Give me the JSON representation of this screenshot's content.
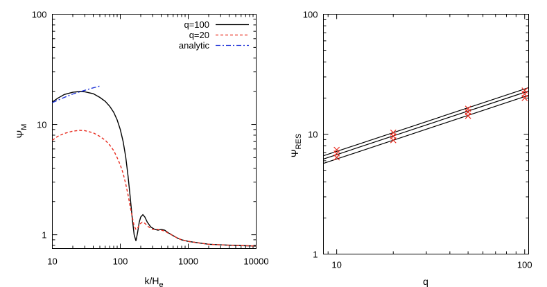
{
  "chart_data": [
    {
      "type": "line",
      "xlabel": "k/H",
      "xlabel_sub": "e",
      "ylabel": "Ψ",
      "ylabel_sub": "M",
      "xscale": "log",
      "yscale": "log",
      "xlim": [
        10,
        10000
      ],
      "ylim": [
        0.75,
        100
      ],
      "x_ticks": [
        10,
        100,
        1000,
        10000
      ],
      "x_tick_labels": [
        "10",
        "100",
        "1000",
        "10000"
      ],
      "y_ticks": [
        1,
        10,
        100
      ],
      "y_tick_labels": [
        "1",
        "10",
        "100"
      ],
      "legend_position": "top-right",
      "grid": false,
      "series": [
        {
          "name": "q=100",
          "color": "#000000",
          "dash": "solid",
          "points": [
            [
              10,
              16.0
            ],
            [
              12,
              17.3
            ],
            [
              15,
              18.7
            ],
            [
              20,
              19.6
            ],
            [
              25,
              19.9
            ],
            [
              30,
              19.8
            ],
            [
              40,
              19.0
            ],
            [
              50,
              17.6
            ],
            [
              60,
              16.2
            ],
            [
              70,
              14.6
            ],
            [
              80,
              12.9
            ],
            [
              90,
              11.0
            ],
            [
              100,
              9.0
            ],
            [
              110,
              7.0
            ],
            [
              120,
              5.1
            ],
            [
              130,
              3.4
            ],
            [
              140,
              2.2
            ],
            [
              150,
              1.4
            ],
            [
              160,
              1.0
            ],
            [
              170,
              0.88
            ],
            [
              180,
              1.05
            ],
            [
              190,
              1.3
            ],
            [
              200,
              1.45
            ],
            [
              215,
              1.52
            ],
            [
              230,
              1.45
            ],
            [
              250,
              1.3
            ],
            [
              280,
              1.18
            ],
            [
              320,
              1.12
            ],
            [
              360,
              1.1
            ],
            [
              400,
              1.12
            ],
            [
              450,
              1.1
            ],
            [
              500,
              1.05
            ],
            [
              600,
              0.98
            ],
            [
              700,
              0.93
            ],
            [
              800,
              0.9
            ],
            [
              1000,
              0.87
            ],
            [
              1500,
              0.84
            ],
            [
              2000,
              0.82
            ],
            [
              3000,
              0.81
            ],
            [
              5000,
              0.8
            ],
            [
              10000,
              0.79
            ]
          ]
        },
        {
          "name": "q=20",
          "color": "#e8291c",
          "dash": "4,3",
          "points": [
            [
              10,
              7.2
            ],
            [
              12,
              7.8
            ],
            [
              15,
              8.3
            ],
            [
              20,
              8.7
            ],
            [
              25,
              8.85
            ],
            [
              30,
              8.8
            ],
            [
              40,
              8.4
            ],
            [
              50,
              7.8
            ],
            [
              60,
              7.2
            ],
            [
              70,
              6.5
            ],
            [
              80,
              5.8
            ],
            [
              90,
              5.0
            ],
            [
              100,
              4.3
            ],
            [
              110,
              3.6
            ],
            [
              120,
              2.9
            ],
            [
              130,
              2.3
            ],
            [
              140,
              1.8
            ],
            [
              150,
              1.45
            ],
            [
              160,
              1.2
            ],
            [
              170,
              1.12
            ],
            [
              180,
              1.15
            ],
            [
              195,
              1.25
            ],
            [
              210,
              1.3
            ],
            [
              230,
              1.27
            ],
            [
              260,
              1.18
            ],
            [
              300,
              1.12
            ],
            [
              350,
              1.12
            ],
            [
              400,
              1.1
            ],
            [
              450,
              1.08
            ],
            [
              500,
              1.04
            ],
            [
              600,
              0.98
            ],
            [
              700,
              0.93
            ],
            [
              800,
              0.9
            ],
            [
              1000,
              0.87
            ],
            [
              1500,
              0.84
            ],
            [
              2000,
              0.82
            ],
            [
              3000,
              0.81
            ],
            [
              5000,
              0.8
            ],
            [
              10000,
              0.79
            ]
          ]
        },
        {
          "name": "analytic",
          "color": "#1a2fd6",
          "dash": "7,3,2,3",
          "points": [
            [
              10,
              15.8
            ],
            [
              15,
              17.6
            ],
            [
              20,
              18.9
            ],
            [
              30,
              20.4
            ],
            [
              40,
              21.5
            ],
            [
              50,
              22.3
            ]
          ]
        }
      ]
    },
    {
      "type": "scatter",
      "xlabel": "q",
      "ylabel": "Ψ",
      "ylabel_sub": "RES",
      "xscale": "log",
      "yscale": "log",
      "xlim": [
        8.5,
        105
      ],
      "ylim": [
        1,
        100
      ],
      "x_ticks": [
        10,
        100
      ],
      "x_tick_labels": [
        "10",
        "100"
      ],
      "y_ticks": [
        1,
        10,
        100
      ],
      "y_tick_labels": [
        "1",
        "10",
        "100"
      ],
      "grid": false,
      "marker_color": "#e8291c",
      "points": [
        [
          10,
          6.4
        ],
        [
          10,
          6.9
        ],
        [
          10,
          7.4
        ],
        [
          20,
          8.9
        ],
        [
          20,
          9.6
        ],
        [
          20,
          10.3
        ],
        [
          50,
          14.2
        ],
        [
          50,
          15.3
        ],
        [
          50,
          16.3
        ],
        [
          100,
          20.0
        ],
        [
          100,
          21.6
        ],
        [
          100,
          23.1
        ]
      ],
      "fit_lines": [
        {
          "x": [
            8.5,
            105
          ],
          "y": [
            5.7,
            21.1
          ]
        },
        {
          "x": [
            8.5,
            105
          ],
          "y": [
            6.2,
            22.9
          ]
        },
        {
          "x": [
            8.5,
            105
          ],
          "y": [
            6.6,
            24.4
          ]
        }
      ]
    }
  ]
}
